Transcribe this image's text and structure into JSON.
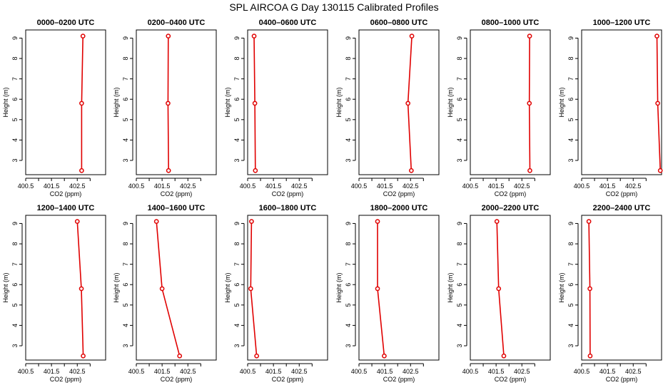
{
  "figure": {
    "title": "SPL AIRCOA G  Day 130115  Calibrated Profiles"
  },
  "colors": {
    "series": "#e00000",
    "axis": "#000000"
  },
  "chart_data": {
    "type": "line",
    "layout": "2x6 panel grid",
    "xlabel": "CO2 (ppm)",
    "ylabel": "Height (m)",
    "xlim": [
      400.5,
      403.6
    ],
    "ylim": [
      2.3,
      9.4
    ],
    "x_ticks": [
      400.5,
      401,
      401.5,
      402,
      402.5,
      403
    ],
    "x_tick_labels": [
      "400.5",
      "",
      "401.5",
      "",
      "402.5",
      ""
    ],
    "y_ticks": [
      3,
      4,
      5,
      6,
      7,
      8,
      9
    ],
    "y_tick_labels": [
      "3",
      "4",
      "5",
      "6",
      "7",
      "8",
      "9"
    ],
    "grid": false,
    "panels": [
      {
        "title": "0000–0200 UTC",
        "heights": [
          9.1,
          5.8,
          2.5
        ],
        "co2": [
          402.72,
          402.67,
          402.67
        ]
      },
      {
        "title": "0200–0400 UTC",
        "heights": [
          9.1,
          5.8,
          2.5
        ],
        "co2": [
          401.74,
          401.73,
          401.75
        ]
      },
      {
        "title": "0400–0600 UTC",
        "heights": [
          9.1,
          5.8,
          2.5
        ],
        "co2": [
          400.75,
          400.78,
          400.8
        ]
      },
      {
        "title": "0600–0800 UTC",
        "heights": [
          9.1,
          5.8,
          2.5
        ],
        "co2": [
          402.55,
          402.4,
          402.53
        ]
      },
      {
        "title": "0800–1000 UTC",
        "heights": [
          9.1,
          5.8,
          2.5
        ],
        "co2": [
          402.8,
          402.79,
          402.81
        ]
      },
      {
        "title": "1000–1200 UTC",
        "heights": [
          9.1,
          5.8,
          2.5
        ],
        "co2": [
          403.42,
          403.45,
          403.55
        ]
      },
      {
        "title": "1200–1400 UTC",
        "heights": [
          9.1,
          5.8,
          2.5
        ],
        "co2": [
          402.5,
          402.66,
          402.73
        ]
      },
      {
        "title": "1400–1600 UTC",
        "heights": [
          9.1,
          5.8,
          2.5
        ],
        "co2": [
          401.28,
          401.5,
          402.18
        ]
      },
      {
        "title": "1600–1800 UTC",
        "heights": [
          9.1,
          5.8,
          2.5
        ],
        "co2": [
          400.65,
          400.62,
          400.85
        ]
      },
      {
        "title": "1800–2000 UTC",
        "heights": [
          9.1,
          5.8,
          2.5
        ],
        "co2": [
          401.22,
          401.22,
          401.48
        ]
      },
      {
        "title": "2000–2200 UTC",
        "heights": [
          9.1,
          5.8,
          2.5
        ],
        "co2": [
          401.53,
          401.6,
          401.8
        ]
      },
      {
        "title": "2200–2400 UTC",
        "heights": [
          9.1,
          5.8,
          2.5
        ],
        "co2": [
          400.78,
          400.82,
          400.83
        ]
      }
    ]
  }
}
